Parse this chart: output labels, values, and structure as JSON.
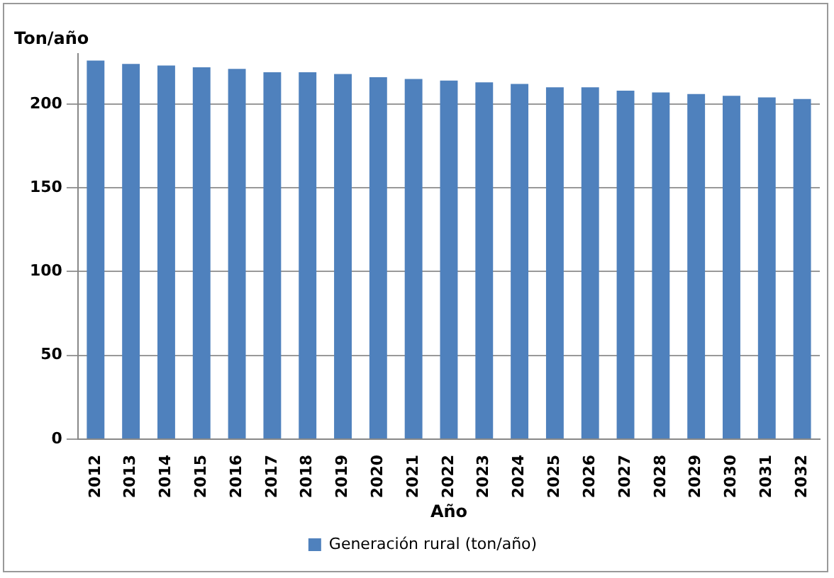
{
  "chart_data": {
    "type": "bar",
    "ylabel": "Ton/año",
    "xlabel": "Año",
    "categories": [
      "2012",
      "2013",
      "2014",
      "2015",
      "2016",
      "2017",
      "2018",
      "2019",
      "2020",
      "2021",
      "2022",
      "2023",
      "2024",
      "2025",
      "2026",
      "2027",
      "2028",
      "2029",
      "2030",
      "2031",
      "2032"
    ],
    "series": [
      {
        "name": "Generación rural (ton/año)",
        "color": "#4f81bd",
        "values": [
          226,
          224,
          223,
          222,
          221,
          219,
          219,
          218,
          216,
          215,
          214,
          213,
          212,
          210,
          210,
          208,
          207,
          206,
          205,
          204,
          203
        ]
      }
    ],
    "ylim": [
      0,
      230
    ],
    "yticks": [
      0,
      50,
      100,
      150,
      200
    ],
    "grid": "y",
    "legend": "bottom"
  }
}
